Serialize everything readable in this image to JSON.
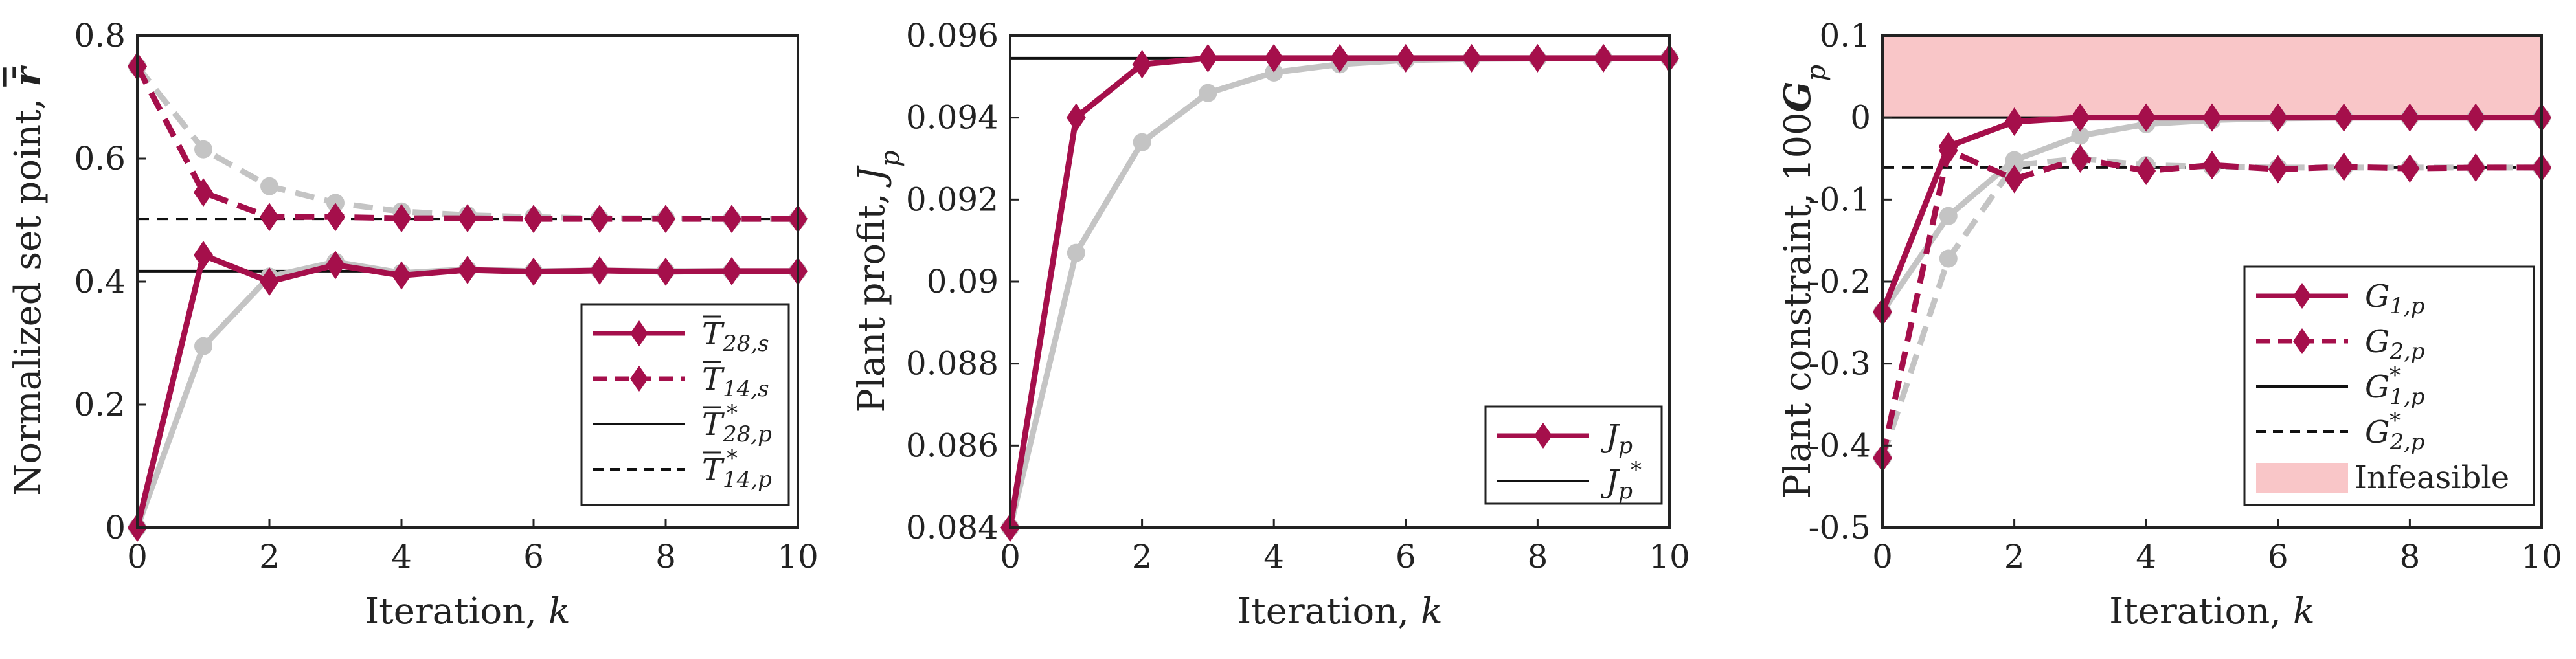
{
  "colors": {
    "crimson": "#A50F4B",
    "gray": "#C4C4C4",
    "black": "#111111",
    "infeasible": "#F9C6C8"
  },
  "chart_data": [
    {
      "type": "line",
      "xlabel": "Iteration, k",
      "ylabel": "Normalized set point, r̄",
      "xlim": [
        0,
        10
      ],
      "ylim": [
        0,
        0.8
      ],
      "xticks": [
        "0",
        "2",
        "4",
        "6",
        "8",
        "10"
      ],
      "yticks": [
        "0",
        "0.2",
        "0.4",
        "0.6",
        "0.8"
      ],
      "grid": false,
      "legend_position": "lower-right",
      "x": [
        0,
        1,
        2,
        3,
        4,
        5,
        6,
        7,
        8,
        9,
        10
      ],
      "series": [
        {
          "name": "T̄28,s",
          "style": "solid-diamond",
          "color": "#A50F4B",
          "values": [
            0.0,
            0.443,
            0.4,
            0.427,
            0.41,
            0.419,
            0.416,
            0.418,
            0.416,
            0.417,
            0.417
          ]
        },
        {
          "name": "T̄14,s",
          "style": "dashed-diamond",
          "color": "#A50F4B",
          "values": [
            0.75,
            0.545,
            0.505,
            0.505,
            0.503,
            0.503,
            0.502,
            0.502,
            0.502,
            0.502,
            0.502
          ]
        },
        {
          "name": "T̄*28,p",
          "style": "solid-hline",
          "color": "#111111",
          "values": [
            0.417,
            0.417,
            0.417,
            0.417,
            0.417,
            0.417,
            0.417,
            0.417,
            0.417,
            0.417,
            0.417
          ]
        },
        {
          "name": "T̄*14,p",
          "style": "dashed-hline",
          "color": "#111111",
          "values": [
            0.502,
            0.502,
            0.502,
            0.502,
            0.502,
            0.502,
            0.502,
            0.502,
            0.502,
            0.502,
            0.502
          ]
        },
        {
          "style": "solid-dot",
          "color": "#C4C4C4",
          "values": [
            0.0,
            0.295,
            0.408,
            0.432,
            0.414,
            0.42,
            0.417,
            0.418,
            0.417,
            0.417,
            0.417
          ]
        },
        {
          "style": "dashed-dot",
          "color": "#C4C4C4",
          "values": [
            0.75,
            0.615,
            0.555,
            0.528,
            0.514,
            0.508,
            0.505,
            0.503,
            0.503,
            0.502,
            0.502
          ]
        }
      ]
    },
    {
      "type": "line",
      "xlabel": "Iteration, k",
      "ylabel": "Plant profit, Jp",
      "xlim": [
        0,
        10
      ],
      "ylim": [
        0.084,
        0.096
      ],
      "xticks": [
        "0",
        "2",
        "4",
        "6",
        "8",
        "10"
      ],
      "yticks": [
        "0.084",
        "0.086",
        "0.088",
        "0.09",
        "0.092",
        "0.094",
        "0.096"
      ],
      "grid": false,
      "legend_position": "lower-right",
      "x": [
        0,
        1,
        2,
        3,
        4,
        5,
        6,
        7,
        8,
        9,
        10
      ],
      "series": [
        {
          "name": "Jp",
          "style": "solid-diamond",
          "color": "#A50F4B",
          "values": [
            0.084,
            0.094,
            0.0953,
            0.09545,
            0.09545,
            0.09545,
            0.09545,
            0.09545,
            0.09545,
            0.09545,
            0.09545
          ]
        },
        {
          "name": "J*p",
          "style": "solid-hline",
          "color": "#111111",
          "values": [
            0.09545,
            0.09545,
            0.09545,
            0.09545,
            0.09545,
            0.09545,
            0.09545,
            0.09545,
            0.09545,
            0.09545,
            0.09545
          ]
        },
        {
          "style": "solid-dot",
          "color": "#C4C4C4",
          "values": [
            0.084,
            0.0907,
            0.0934,
            0.0946,
            0.0951,
            0.0953,
            0.0954,
            0.09543,
            0.09544,
            0.09545,
            0.09545
          ]
        }
      ]
    },
    {
      "type": "line",
      "xlabel": "Iteration, k",
      "ylabel": "Plant constraint, 100Gp",
      "xlim": [
        0,
        10
      ],
      "ylim": [
        -0.5,
        0.1
      ],
      "xticks": [
        "0",
        "2",
        "4",
        "6",
        "8",
        "10"
      ],
      "yticks": [
        "-0.5",
        "-0.4",
        "-0.3",
        "-0.2",
        "-0.1",
        "0",
        "0.1"
      ],
      "grid": false,
      "legend_position": "lower-right",
      "x": [
        0,
        1,
        2,
        3,
        4,
        5,
        6,
        7,
        8,
        9,
        10
      ],
      "shaded_region": {
        "label": "Infeasible",
        "y_range": [
          0,
          0.1
        ]
      },
      "series": [
        {
          "name": "G1,p",
          "style": "solid-diamond",
          "color": "#A50F4B",
          "values": [
            -0.237,
            -0.035,
            -0.005,
            0.0,
            0.0,
            0.0,
            0.0,
            0.0,
            0.0,
            0.0,
            0.0
          ]
        },
        {
          "name": "G2,p",
          "style": "dashed-diamond",
          "color": "#A50F4B",
          "values": [
            -0.415,
            -0.04,
            -0.075,
            -0.05,
            -0.065,
            -0.058,
            -0.063,
            -0.06,
            -0.062,
            -0.061,
            -0.061
          ]
        },
        {
          "name": "G*1,p",
          "style": "solid-hline",
          "color": "#111111",
          "values": [
            0,
            0,
            0,
            0,
            0,
            0,
            0,
            0,
            0,
            0,
            0
          ]
        },
        {
          "name": "G*2,p",
          "style": "dashed-hline",
          "color": "#111111",
          "values": [
            -0.061,
            -0.061,
            -0.061,
            -0.061,
            -0.061,
            -0.061,
            -0.061,
            -0.061,
            -0.061,
            -0.061,
            -0.061
          ]
        },
        {
          "style": "solid-dot",
          "color": "#C4C4C4",
          "values": [
            -0.237,
            -0.12,
            -0.052,
            -0.022,
            -0.008,
            -0.003,
            -0.001,
            0.0,
            0.0,
            0.0,
            0.0
          ]
        },
        {
          "style": "dashed-dot",
          "color": "#C4C4C4",
          "values": [
            -0.415,
            -0.172,
            -0.058,
            -0.05,
            -0.058,
            -0.06,
            -0.061,
            -0.061,
            -0.061,
            -0.061,
            -0.061
          ]
        }
      ]
    }
  ]
}
